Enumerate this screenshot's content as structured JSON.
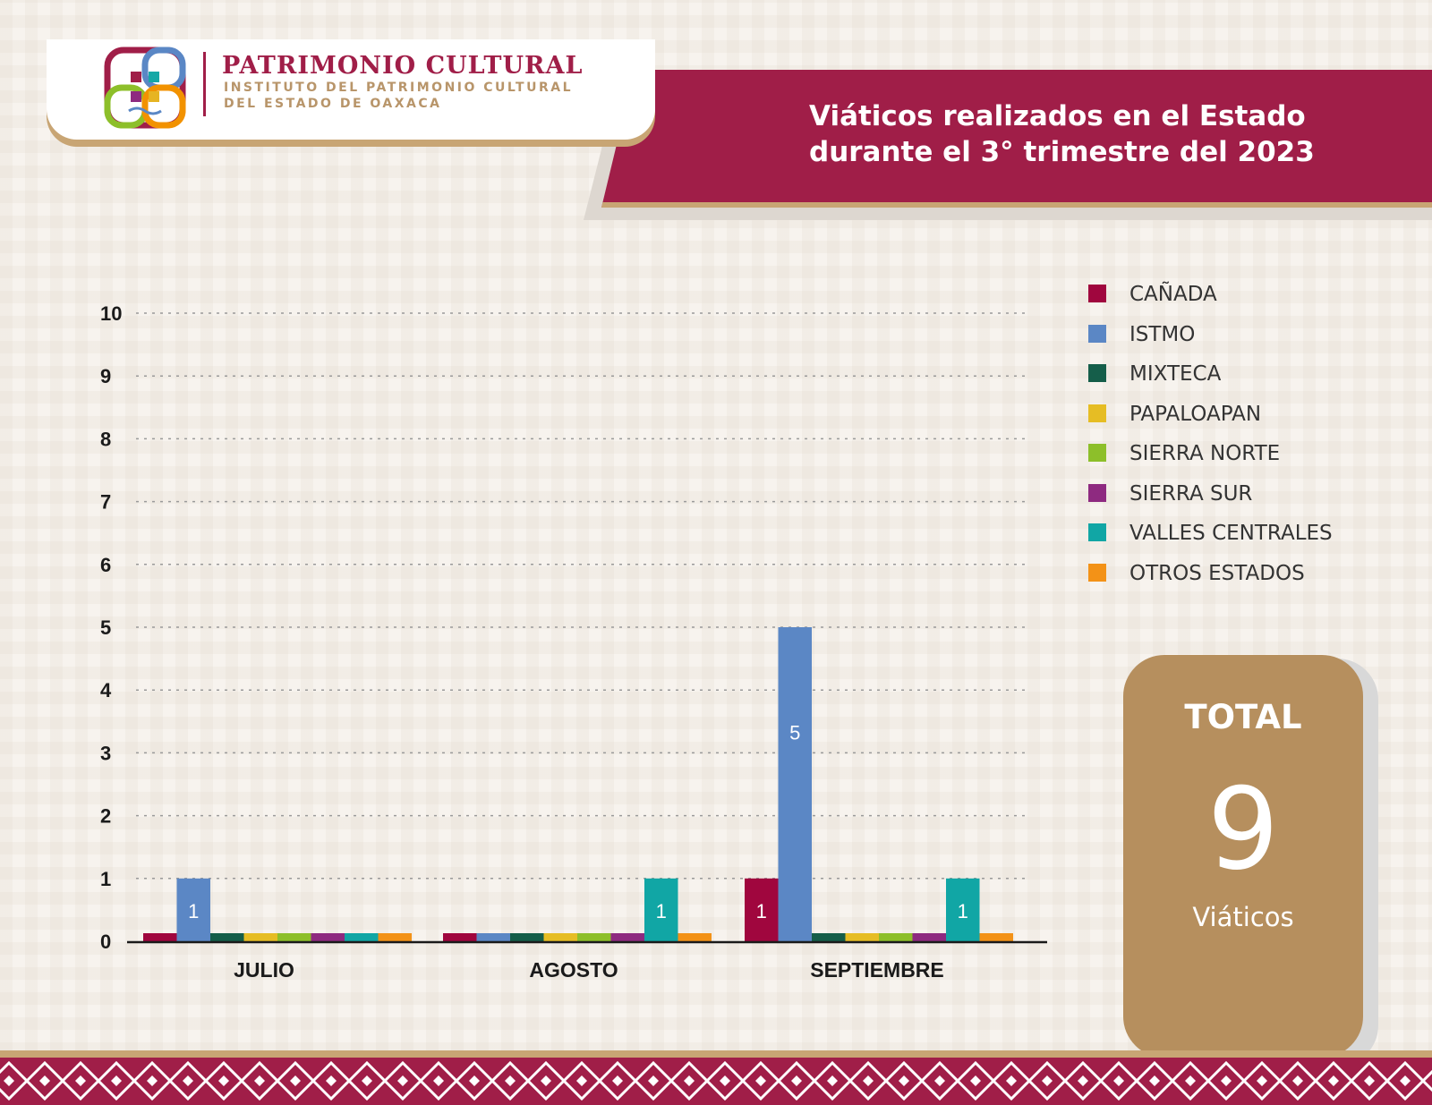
{
  "header": {
    "logo_title": "PATRIMONIO CULTURAL",
    "logo_subtitle_1": "INSTITUTO DEL PATRIMONIO CULTURAL",
    "logo_subtitle_2": "DEL ESTADO DE OAXACA",
    "banner_title": "Viáticos realizados en el Estado durante el 3° trimestre del 2023",
    "logo_colors": [
      "#a01e48",
      "#5a87c5",
      "#16a8a6",
      "#f29200",
      "#8dbf2a",
      "#e6b422",
      "#8e2a80"
    ]
  },
  "chart_data": {
    "type": "bar",
    "categories": [
      "JULIO",
      "AGOSTO",
      "SEPTIEMBRE"
    ],
    "ylim": [
      0,
      10
    ],
    "yticks": [
      "0",
      "1",
      "2",
      "3",
      "4",
      "5",
      "6",
      "7",
      "8",
      "9",
      "10"
    ],
    "grid": true,
    "legend_position": "right",
    "series": [
      {
        "name": "CAÑADA",
        "color": "#a0063e",
        "values": [
          0,
          0,
          1
        ]
      },
      {
        "name": "ISTMO",
        "color": "#5b87c5",
        "values": [
          1,
          0,
          5
        ]
      },
      {
        "name": "MIXTECA",
        "color": "#155e4a",
        "values": [
          0,
          0,
          0
        ]
      },
      {
        "name": "PAPALOAPAN",
        "color": "#e6bd24",
        "values": [
          0,
          0,
          0
        ]
      },
      {
        "name": "SIERRA NORTE",
        "color": "#8dbf2a",
        "values": [
          0,
          0,
          0
        ]
      },
      {
        "name": "SIERRA SUR",
        "color": "#8e2a80",
        "values": [
          0,
          0,
          0
        ]
      },
      {
        "name": "VALLES CENTRALES",
        "color": "#11a6a5",
        "values": [
          0,
          1,
          1
        ]
      },
      {
        "name": "OTROS ESTADOS",
        "color": "#f39217",
        "values": [
          0,
          0,
          0
        ]
      }
    ]
  },
  "total": {
    "label": "TOTAL",
    "value": "9",
    "unit": "Viáticos"
  },
  "footer_colors": [
    "#a01e48",
    "#ffffff",
    "#c8a574"
  ]
}
